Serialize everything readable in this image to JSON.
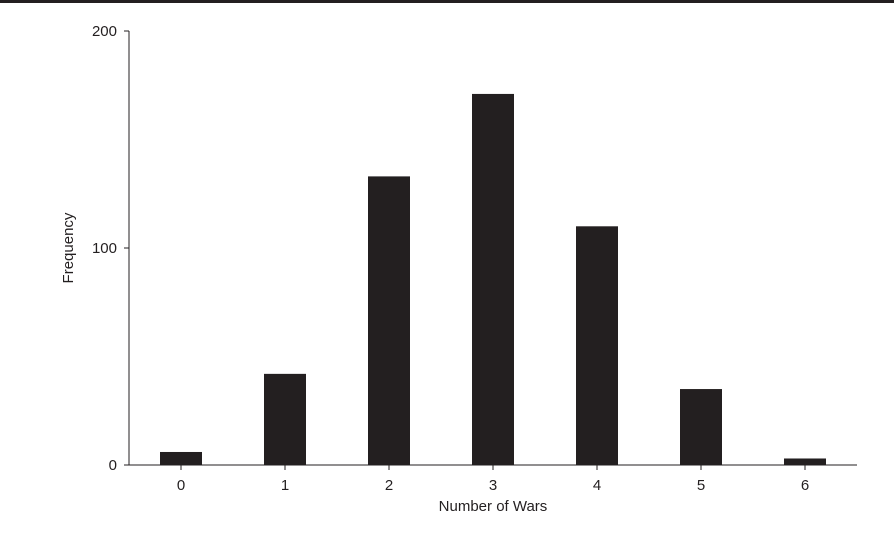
{
  "chart_data": {
    "type": "bar",
    "categories": [
      "0",
      "1",
      "2",
      "3",
      "4",
      "5",
      "6"
    ],
    "values": [
      6,
      42,
      133,
      171,
      110,
      35,
      3
    ],
    "title": "",
    "xlabel": "Number of Wars",
    "ylabel": "Frequency",
    "ylim": [
      0,
      200
    ],
    "yticks": [
      "0",
      "100",
      "200"
    ],
    "grid": false,
    "bar_color": "#231f20",
    "axis_color": "#231f20"
  }
}
